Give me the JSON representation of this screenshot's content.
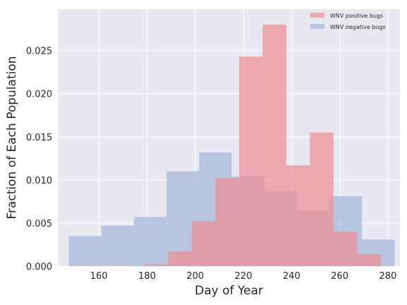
{
  "chart_data": {
    "type": "histogram",
    "title": "",
    "xlabel": "Day of Year",
    "ylabel": "Fraction of Each Population",
    "xlim": [
      143,
      285
    ],
    "ylim": [
      0,
      0.0298
    ],
    "xticks": [
      160,
      180,
      200,
      220,
      240,
      260,
      280
    ],
    "yticks": [
      0.0,
      0.005,
      0.01,
      0.015,
      0.02,
      0.025
    ],
    "ytick_labels": [
      "0.000",
      "0.005",
      "0.010",
      "0.015",
      "0.020",
      "0.025"
    ],
    "grid": true,
    "background": "#e8e8f1",
    "legend_position": "upper right",
    "series": [
      {
        "name": "WNV negative bugs",
        "color": "#a8b9d9",
        "opacity": 0.75,
        "bins": [
          {
            "x0": 147.5,
            "x1": 161.0,
            "value": 0.0035
          },
          {
            "x0": 161.0,
            "x1": 174.6,
            "value": 0.0047
          },
          {
            "x0": 174.6,
            "x1": 188.1,
            "value": 0.0057
          },
          {
            "x0": 188.1,
            "x1": 201.6,
            "value": 0.011
          },
          {
            "x0": 201.6,
            "x1": 215.1,
            "value": 0.0132
          },
          {
            "x0": 215.1,
            "x1": 228.7,
            "value": 0.0104
          },
          {
            "x0": 228.7,
            "x1": 242.2,
            "value": 0.0087
          },
          {
            "x0": 242.2,
            "x1": 255.7,
            "value": 0.0064
          },
          {
            "x0": 255.7,
            "x1": 269.2,
            "value": 0.0081
          },
          {
            "x0": 269.2,
            "x1": 282.8,
            "value": 0.0031
          }
        ]
      },
      {
        "name": "WNV positive bugs",
        "color": "#f08c91",
        "opacity": 0.7,
        "bins": [
          {
            "x0": 179.0,
            "x1": 188.8,
            "value": 0.0002
          },
          {
            "x0": 188.8,
            "x1": 198.6,
            "value": 0.0017
          },
          {
            "x0": 198.6,
            "x1": 208.4,
            "value": 0.0052
          },
          {
            "x0": 208.4,
            "x1": 218.2,
            "value": 0.0102
          },
          {
            "x0": 218.2,
            "x1": 228.0,
            "value": 0.0243
          },
          {
            "x0": 228.0,
            "x1": 237.8,
            "value": 0.028
          },
          {
            "x0": 237.8,
            "x1": 247.6,
            "value": 0.0117
          },
          {
            "x0": 247.6,
            "x1": 257.4,
            "value": 0.0155
          },
          {
            "x0": 257.4,
            "x1": 267.2,
            "value": 0.004
          },
          {
            "x0": 267.2,
            "x1": 277.0,
            "value": 0.0014
          }
        ]
      }
    ],
    "legend_order": [
      "WNV positive bugs",
      "WNV negative bugs"
    ]
  }
}
